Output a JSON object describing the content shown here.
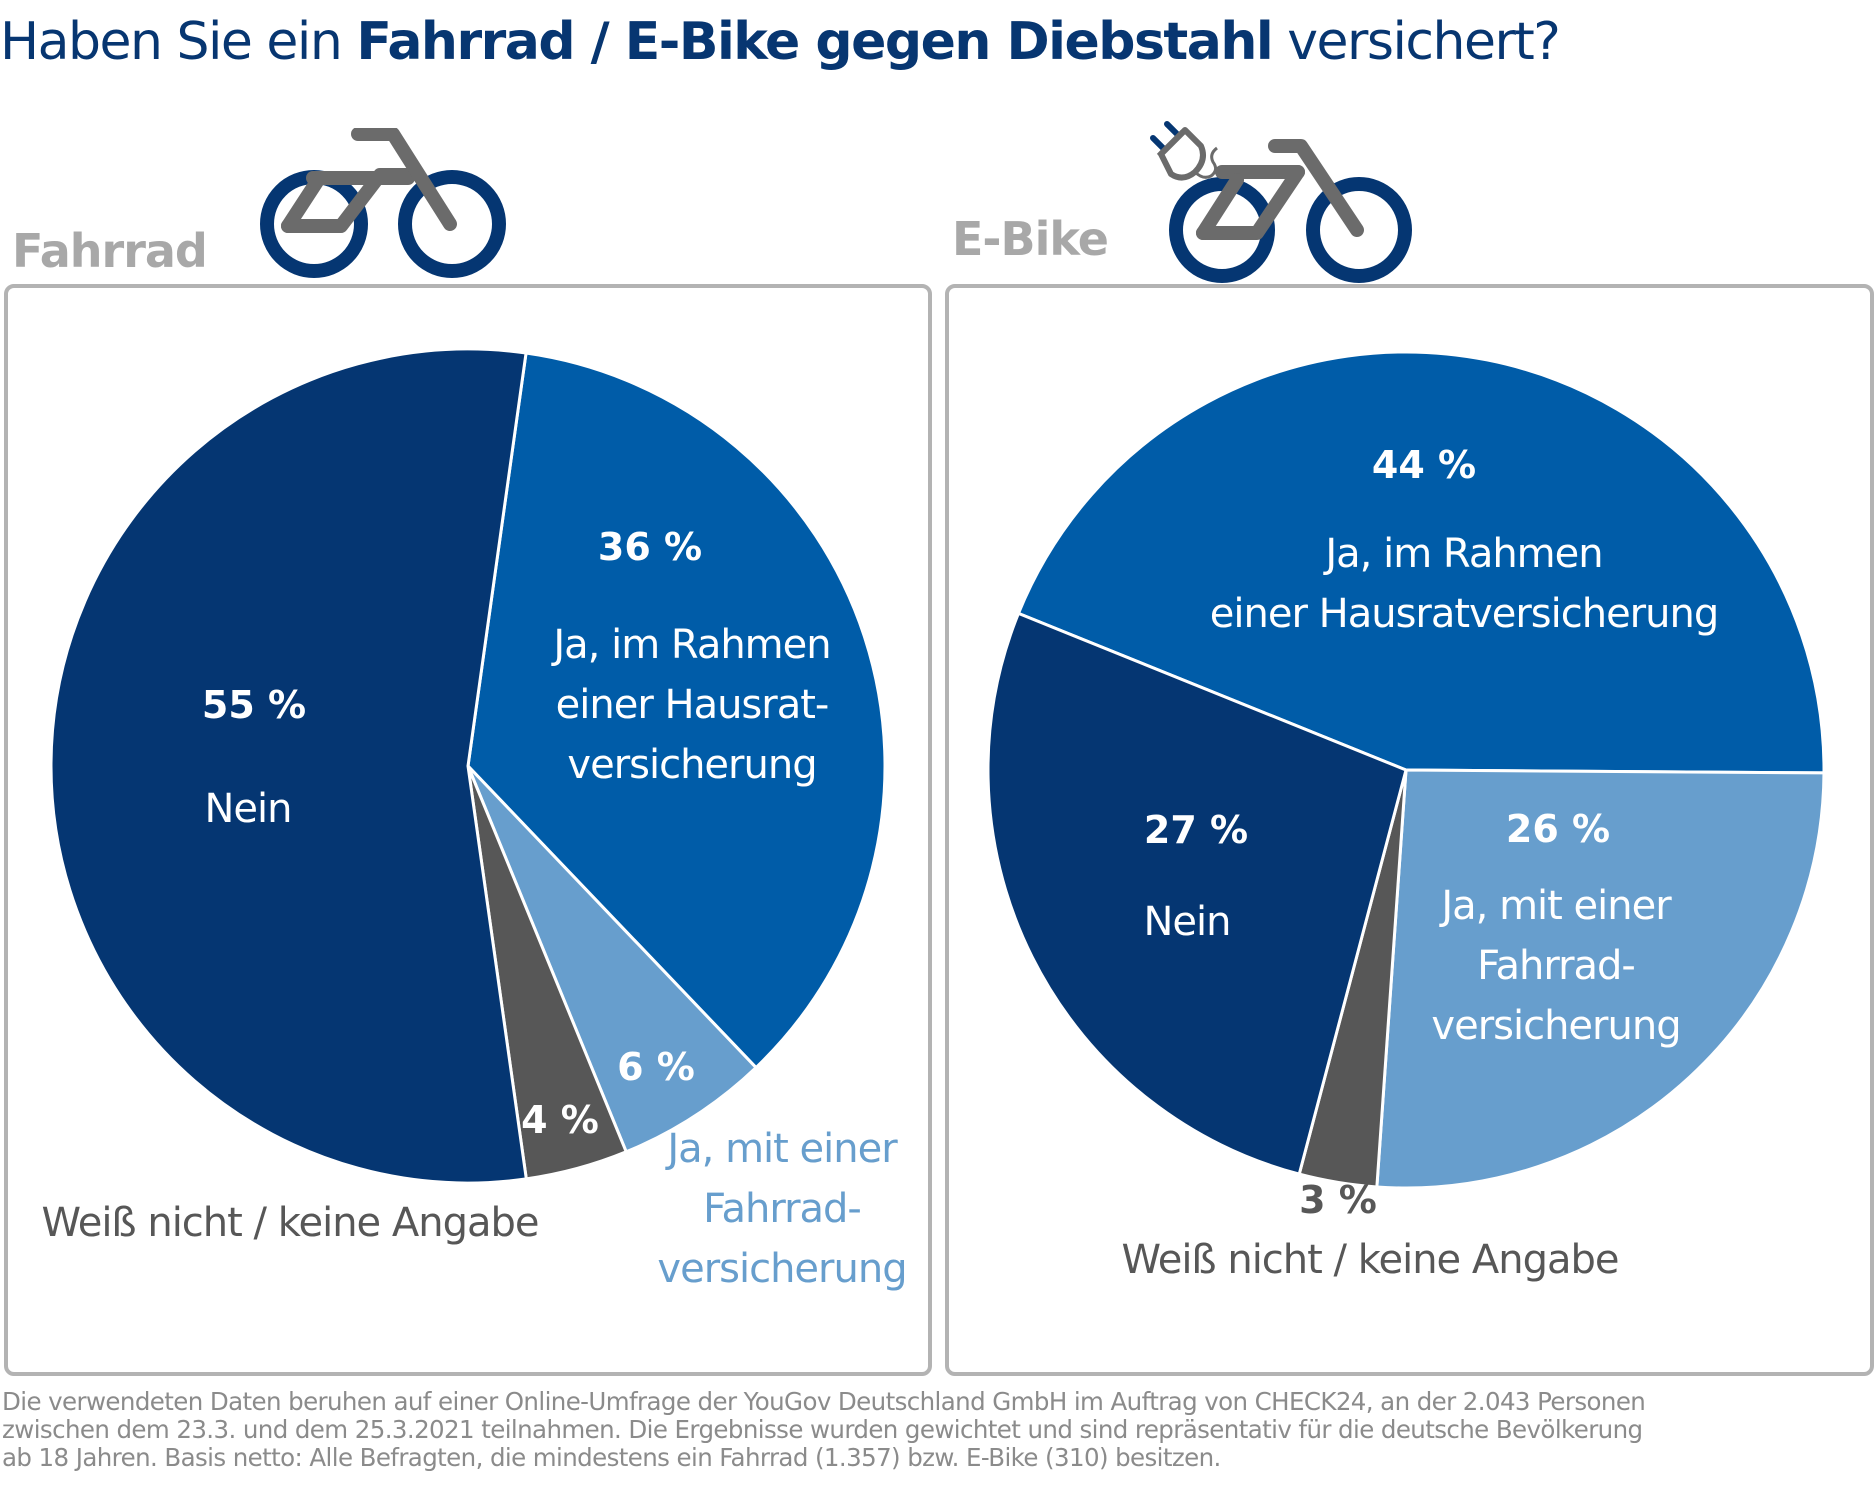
{
  "title": {
    "prefix": "Haben Sie ein ",
    "emphasis": "Fahrrad / E-Bike gegen Diebstahl",
    "suffix": " versichert?"
  },
  "colors": {
    "title": "#073671",
    "nein": "#053672",
    "hausrat": "#005ca8",
    "fahrradversicherung": "#679ecd",
    "weiss_nicht": "#575757",
    "panel_border": "#b3b3b3",
    "panel_label": "#a8a8a8",
    "bike_wheel": "#053672",
    "bike_frame": "#6b6b6b"
  },
  "icons": {
    "fahrrad": "bicycle-icon",
    "ebike": "electric-bicycle-icon"
  },
  "chart_data": [
    {
      "type": "pie",
      "title": "Fahrrad",
      "categories": [
        "Ja, im Rahmen einer Hausratversicherung",
        "Ja, mit einer Fahrradversicherung",
        "Weiß nicht / keine Angabe",
        "Nein"
      ],
      "values": [
        36,
        6,
        4,
        55
      ],
      "data_labels": [
        "36 %",
        "6 %",
        "4 %",
        "55 %"
      ],
      "category_labels": [
        [
          "Ja, im Rahmen",
          "einer Hausrat-",
          "versicherung"
        ],
        [
          "Ja, mit einer",
          "Fahrrad-",
          "versicherung"
        ],
        [
          "Weiß nicht / keine Angabe"
        ],
        [
          "Nein"
        ]
      ],
      "colors": [
        "#005ca8",
        "#679ecd",
        "#575757",
        "#053672"
      ],
      "start_angle_deg": 8,
      "direction": "clockwise"
    },
    {
      "type": "pie",
      "title": "E-Bike",
      "categories": [
        "Ja, im Rahmen einer Hausratversicherung",
        "Ja, mit einer Fahrradversicherung",
        "Weiß nicht / keine Angabe",
        "Nein"
      ],
      "values": [
        44,
        26,
        3,
        27
      ],
      "data_labels": [
        "44 %",
        "26 %",
        "3 %",
        "27 %"
      ],
      "category_labels": [
        [
          "Ja, im Rahmen",
          "einer Hausratversicherung"
        ],
        [
          "Ja, mit einer",
          "Fahrrad-",
          "versicherung"
        ],
        [
          "Weiß nicht / keine Angabe"
        ],
        [
          "Nein"
        ]
      ],
      "colors": [
        "#005ca8",
        "#679ecd",
        "#575757",
        "#053672"
      ],
      "start_angle_deg": -68,
      "direction": "clockwise"
    }
  ],
  "footnote": [
    "Die verwendeten Daten beruhen auf einer Online-Umfrage der YouGov Deutschland GmbH im Auftrag von CHECK24, an der 2.043 Personen",
    "zwischen dem 23.3. und dem 25.3.2021 teilnahmen. Die Ergebnisse wurden gewichtet und sind repräsentativ für die deutsche Bevölkerung",
    "ab 18 Jahren. Basis netto: Alle Befragten, die mindestens ein Fahrrad (1.357) bzw. E-Bike (310) besitzen."
  ]
}
